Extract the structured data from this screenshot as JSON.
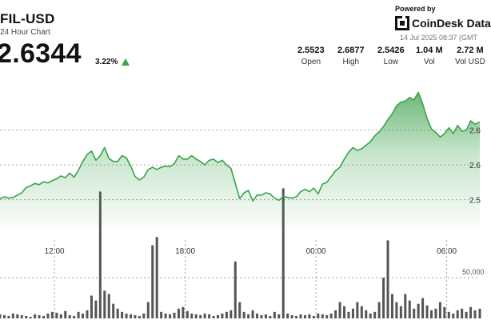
{
  "header": {
    "title": "FIL-USD",
    "subtitle": "24 Hour Chart",
    "price": "2.6344",
    "change": "3.22%",
    "change_direction_icon": "triangle-up-icon",
    "change_color": "#3aa24a"
  },
  "branding": {
    "powered_by": "Powered by",
    "name": "CoinDesk Data",
    "timestamp": "14 Jul 2025 08:37 (GMT"
  },
  "stats": [
    {
      "value": "2.5523",
      "label": "Open"
    },
    {
      "value": "2.6877",
      "label": "High"
    },
    {
      "value": "2.5426",
      "label": "Low"
    },
    {
      "value": "1.04 M",
      "label": "Vol"
    },
    {
      "value": "2.72 M",
      "label": "Vol USD"
    }
  ],
  "chart_data": {
    "type": "area",
    "x_unit": "hours from 08:37 (GMT)",
    "x_ticks": [
      {
        "x": 3.3,
        "label": "12:00"
      },
      {
        "x": 9.3,
        "label": "18:00"
      },
      {
        "x": 15.3,
        "label": "00:00"
      },
      {
        "x": 21.3,
        "label": "06:00"
      }
    ],
    "price_ticks": [
      {
        "y": 2.5,
        "label": "2.5"
      },
      {
        "y": 2.56,
        "label": "2.6"
      },
      {
        "y": 2.62,
        "label": "2.6"
      }
    ],
    "volume_tick": {
      "y": 50000,
      "label": "50,000"
    },
    "xlim": [
      0.8,
      22.82
    ],
    "ylim_price": [
      2.45,
      2.72
    ],
    "ylim_volume": [
      0,
      180000
    ],
    "line_color": "#3aa24a",
    "fill_color": "#3aa24a",
    "volume_color": "#555555",
    "price": [
      [
        0.8,
        2.502
      ],
      [
        1.0,
        2.505
      ],
      [
        1.2,
        2.503
      ],
      [
        1.4,
        2.504
      ],
      [
        1.6,
        2.508
      ],
      [
        1.8,
        2.512
      ],
      [
        2.0,
        2.521
      ],
      [
        2.2,
        2.524
      ],
      [
        2.4,
        2.528
      ],
      [
        2.6,
        2.526
      ],
      [
        2.8,
        2.531
      ],
      [
        3.0,
        2.529
      ],
      [
        3.2,
        2.533
      ],
      [
        3.4,
        2.536
      ],
      [
        3.6,
        2.541
      ],
      [
        3.8,
        2.538
      ],
      [
        4.0,
        2.546
      ],
      [
        4.2,
        2.539
      ],
      [
        4.4,
        2.551
      ],
      [
        4.6,
        2.566
      ],
      [
        4.8,
        2.578
      ],
      [
        5.0,
        2.584
      ],
      [
        5.2,
        2.568
      ],
      [
        5.4,
        2.576
      ],
      [
        5.6,
        2.59
      ],
      [
        5.8,
        2.571
      ],
      [
        6.0,
        2.566
      ],
      [
        6.2,
        2.566
      ],
      [
        6.4,
        2.576
      ],
      [
        6.6,
        2.572
      ],
      [
        6.8,
        2.558
      ],
      [
        7.0,
        2.54
      ],
      [
        7.2,
        2.534
      ],
      [
        7.4,
        2.539
      ],
      [
        7.6,
        2.552
      ],
      [
        7.8,
        2.556
      ],
      [
        8.0,
        2.552
      ],
      [
        8.2,
        2.556
      ],
      [
        8.4,
        2.558
      ],
      [
        8.6,
        2.557
      ],
      [
        8.8,
        2.562
      ],
      [
        9.0,
        2.576
      ],
      [
        9.2,
        2.57
      ],
      [
        9.4,
        2.57
      ],
      [
        9.6,
        2.576
      ],
      [
        9.8,
        2.57
      ],
      [
        10.0,
        2.566
      ],
      [
        10.2,
        2.56
      ],
      [
        10.4,
        2.568
      ],
      [
        10.6,
        2.57
      ],
      [
        10.8,
        2.564
      ],
      [
        11.0,
        2.568
      ],
      [
        11.2,
        2.56
      ],
      [
        11.4,
        2.554
      ],
      [
        11.6,
        2.528
      ],
      [
        11.8,
        2.502
      ],
      [
        12.0,
        2.512
      ],
      [
        12.2,
        2.516
      ],
      [
        12.4,
        2.498
      ],
      [
        12.6,
        2.508
      ],
      [
        12.8,
        2.508
      ],
      [
        13.0,
        2.512
      ],
      [
        13.2,
        2.51
      ],
      [
        13.4,
        2.503
      ],
      [
        13.6,
        2.499
      ],
      [
        13.8,
        2.506
      ],
      [
        14.0,
        2.504
      ],
      [
        14.2,
        2.503
      ],
      [
        14.4,
        2.505
      ],
      [
        14.6,
        2.514
      ],
      [
        14.8,
        2.518
      ],
      [
        15.0,
        2.514
      ],
      [
        15.2,
        2.52
      ],
      [
        15.4,
        2.51
      ],
      [
        15.6,
        2.527
      ],
      [
        15.8,
        2.53
      ],
      [
        16.0,
        2.54
      ],
      [
        16.2,
        2.55
      ],
      [
        16.4,
        2.556
      ],
      [
        16.6,
        2.57
      ],
      [
        16.8,
        2.582
      ],
      [
        17.0,
        2.59
      ],
      [
        17.2,
        2.585
      ],
      [
        17.4,
        2.588
      ],
      [
        17.6,
        2.594
      ],
      [
        17.8,
        2.6
      ],
      [
        18.0,
        2.61
      ],
      [
        18.2,
        2.617
      ],
      [
        18.4,
        2.626
      ],
      [
        18.6,
        2.638
      ],
      [
        18.8,
        2.648
      ],
      [
        19.0,
        2.662
      ],
      [
        19.2,
        2.668
      ],
      [
        19.4,
        2.67
      ],
      [
        19.6,
        2.676
      ],
      [
        19.8,
        2.672
      ],
      [
        20.0,
        2.685
      ],
      [
        20.2,
        2.665
      ],
      [
        20.4,
        2.64
      ],
      [
        20.6,
        2.622
      ],
      [
        20.8,
        2.616
      ],
      [
        21.0,
        2.608
      ],
      [
        21.2,
        2.614
      ],
      [
        21.4,
        2.624
      ],
      [
        21.6,
        2.614
      ],
      [
        21.8,
        2.628
      ],
      [
        22.0,
        2.618
      ],
      [
        22.2,
        2.62
      ],
      [
        22.4,
        2.636
      ],
      [
        22.6,
        2.63
      ],
      [
        22.82,
        2.634
      ]
    ],
    "volume": [
      [
        0.8,
        5000
      ],
      [
        1.0,
        4000
      ],
      [
        1.2,
        3000
      ],
      [
        1.4,
        6000
      ],
      [
        1.6,
        5000
      ],
      [
        1.8,
        4000
      ],
      [
        2.0,
        3000
      ],
      [
        2.2,
        2000
      ],
      [
        2.4,
        5000
      ],
      [
        2.6,
        4000
      ],
      [
        2.8,
        3000
      ],
      [
        3.0,
        6000
      ],
      [
        3.2,
        8000
      ],
      [
        3.4,
        7000
      ],
      [
        3.6,
        5000
      ],
      [
        3.8,
        9000
      ],
      [
        4.0,
        4000
      ],
      [
        4.2,
        3000
      ],
      [
        4.4,
        8000
      ],
      [
        4.6,
        6000
      ],
      [
        4.8,
        10000
      ],
      [
        5.0,
        28000
      ],
      [
        5.2,
        22000
      ],
      [
        5.4,
        156000
      ],
      [
        5.6,
        34000
      ],
      [
        5.8,
        30000
      ],
      [
        6.0,
        18000
      ],
      [
        6.2,
        12000
      ],
      [
        6.4,
        8000
      ],
      [
        6.6,
        6000
      ],
      [
        6.8,
        5000
      ],
      [
        7.0,
        4000
      ],
      [
        7.2,
        3000
      ],
      [
        7.4,
        6000
      ],
      [
        7.6,
        20000
      ],
      [
        7.8,
        90000
      ],
      [
        8.0,
        100000
      ],
      [
        8.2,
        8000
      ],
      [
        8.4,
        6000
      ],
      [
        8.6,
        5000
      ],
      [
        8.8,
        7000
      ],
      [
        9.0,
        12000
      ],
      [
        9.2,
        14000
      ],
      [
        9.4,
        9000
      ],
      [
        9.6,
        6000
      ],
      [
        9.8,
        5000
      ],
      [
        10.0,
        4000
      ],
      [
        10.2,
        6000
      ],
      [
        10.4,
        5000
      ],
      [
        10.6,
        3000
      ],
      [
        10.8,
        4000
      ],
      [
        11.0,
        6000
      ],
      [
        11.2,
        8000
      ],
      [
        11.4,
        10000
      ],
      [
        11.6,
        70000
      ],
      [
        11.8,
        20000
      ],
      [
        12.0,
        8000
      ],
      [
        12.2,
        5000
      ],
      [
        12.4,
        10000
      ],
      [
        12.6,
        6000
      ],
      [
        12.8,
        4000
      ],
      [
        13.0,
        5000
      ],
      [
        13.2,
        3000
      ],
      [
        13.4,
        8000
      ],
      [
        13.6,
        5000
      ],
      [
        13.8,
        160000
      ],
      [
        14.0,
        6000
      ],
      [
        14.2,
        4000
      ],
      [
        14.4,
        3000
      ],
      [
        14.6,
        5000
      ],
      [
        14.8,
        4000
      ],
      [
        15.0,
        5000
      ],
      [
        15.2,
        3000
      ],
      [
        15.4,
        6000
      ],
      [
        15.6,
        5000
      ],
      [
        15.8,
        4000
      ],
      [
        16.0,
        6000
      ],
      [
        16.2,
        10000
      ],
      [
        16.4,
        20000
      ],
      [
        16.6,
        15000
      ],
      [
        16.8,
        8000
      ],
      [
        17.0,
        12000
      ],
      [
        17.2,
        20000
      ],
      [
        17.4,
        15000
      ],
      [
        17.6,
        10000
      ],
      [
        17.8,
        6000
      ],
      [
        18.0,
        8000
      ],
      [
        18.2,
        20000
      ],
      [
        18.4,
        50000
      ],
      [
        18.6,
        96000
      ],
      [
        18.8,
        30000
      ],
      [
        19.0,
        20000
      ],
      [
        19.2,
        15000
      ],
      [
        19.4,
        30000
      ],
      [
        19.6,
        22000
      ],
      [
        19.8,
        12000
      ],
      [
        20.0,
        18000
      ],
      [
        20.2,
        25000
      ],
      [
        20.4,
        16000
      ],
      [
        20.6,
        10000
      ],
      [
        20.8,
        12000
      ],
      [
        21.0,
        20000
      ],
      [
        21.2,
        14000
      ],
      [
        21.4,
        8000
      ],
      [
        21.6,
        6000
      ],
      [
        21.8,
        10000
      ],
      [
        22.0,
        12000
      ],
      [
        22.2,
        8000
      ],
      [
        22.4,
        14000
      ],
      [
        22.6,
        10000
      ],
      [
        22.82,
        12000
      ]
    ]
  }
}
